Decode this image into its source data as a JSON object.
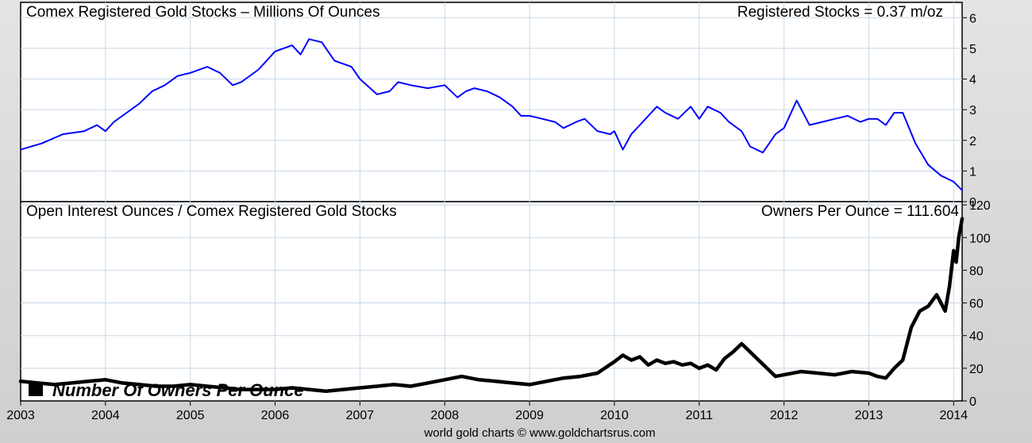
{
  "chart_data": [
    {
      "type": "line",
      "title": "Comex Registered Gold Stocks – Millions Of Ounces",
      "annotation": "Registered Stocks = 0.37 m/oz",
      "ylim": [
        0,
        6.5
      ],
      "yticks": [
        0,
        1,
        2,
        3,
        4,
        5,
        6
      ],
      "y_tick_labels": [
        "0",
        "1",
        "2",
        "3",
        "4",
        "5",
        "6"
      ],
      "grid": true,
      "series": [
        {
          "color": "#0000ff",
          "x": [
            2003.0,
            2003.25,
            2003.5,
            2003.75,
            2003.9,
            2004.0,
            2004.1,
            2004.25,
            2004.4,
            2004.55,
            2004.7,
            2004.85,
            2005.0,
            2005.2,
            2005.35,
            2005.5,
            2005.6,
            2005.8,
            2005.9,
            2006.0,
            2006.2,
            2006.3,
            2006.4,
            2006.55,
            2006.7,
            2006.9,
            2007.0,
            2007.2,
            2007.35,
            2007.45,
            2007.6,
            2007.8,
            2008.0,
            2008.15,
            2008.25,
            2008.35,
            2008.5,
            2008.65,
            2008.8,
            2008.9,
            2009.0,
            2009.15,
            2009.3,
            2009.4,
            2009.55,
            2009.65,
            2009.8,
            2009.95,
            2010.0,
            2010.1,
            2010.2,
            2010.3,
            2010.4,
            2010.5,
            2010.6,
            2010.75,
            2010.9,
            2011.0,
            2011.1,
            2011.25,
            2011.35,
            2011.5,
            2011.6,
            2011.75,
            2011.85,
            2011.9,
            2012.0,
            2012.15,
            2012.3,
            2012.45,
            2012.6,
            2012.75,
            2012.9,
            2013.0,
            2013.1,
            2013.2,
            2013.3,
            2013.4,
            2013.55,
            2013.7,
            2013.85,
            2014.0,
            2014.1
          ],
          "values": [
            1.7,
            1.9,
            2.2,
            2.3,
            2.5,
            2.3,
            2.6,
            2.9,
            3.2,
            3.6,
            3.8,
            4.1,
            4.2,
            4.4,
            4.2,
            3.8,
            3.9,
            4.3,
            4.6,
            4.9,
            5.1,
            4.8,
            5.3,
            5.2,
            4.6,
            4.4,
            4.0,
            3.5,
            3.6,
            3.9,
            3.8,
            3.7,
            3.8,
            3.4,
            3.6,
            3.7,
            3.6,
            3.4,
            3.1,
            2.8,
            2.8,
            2.7,
            2.6,
            2.4,
            2.6,
            2.7,
            2.3,
            2.2,
            2.3,
            1.7,
            2.2,
            2.5,
            2.8,
            3.1,
            2.9,
            2.7,
            3.1,
            2.7,
            3.1,
            2.9,
            2.6,
            2.3,
            1.8,
            1.6,
            2.0,
            2.2,
            2.4,
            3.3,
            2.5,
            2.6,
            2.7,
            2.8,
            2.6,
            2.7,
            2.7,
            2.5,
            2.9,
            2.9,
            1.9,
            1.2,
            0.85,
            0.65,
            0.37
          ]
        }
      ]
    },
    {
      "type": "line",
      "title": "Open Interest Ounces / Comex Registered Gold Stocks",
      "annotation": "Owners Per Ounce = 111.604",
      "legend": "Number Of Owners Per Ounce",
      "ylim": [
        0,
        122
      ],
      "yticks": [
        0,
        20,
        40,
        60,
        80,
        100,
        120
      ],
      "y_tick_labels": [
        "0",
        "20",
        "40",
        "60",
        "80",
        "100",
        "120"
      ],
      "grid": true,
      "series": [
        {
          "color": "#000000",
          "x": [
            2003.0,
            2003.2,
            2003.4,
            2003.6,
            2003.8,
            2004.0,
            2004.2,
            2004.4,
            2004.6,
            2004.8,
            2005.0,
            2005.2,
            2005.4,
            2005.6,
            2005.8,
            2006.0,
            2006.2,
            2006.4,
            2006.6,
            2006.8,
            2007.0,
            2007.2,
            2007.4,
            2007.6,
            2007.8,
            2008.0,
            2008.2,
            2008.4,
            2008.6,
            2008.8,
            2009.0,
            2009.2,
            2009.4,
            2009.6,
            2009.8,
            2010.0,
            2010.1,
            2010.2,
            2010.3,
            2010.4,
            2010.5,
            2010.6,
            2010.7,
            2010.8,
            2010.9,
            2011.0,
            2011.1,
            2011.2,
            2011.3,
            2011.4,
            2011.5,
            2011.6,
            2011.7,
            2011.8,
            2011.9,
            2012.0,
            2012.2,
            2012.4,
            2012.6,
            2012.8,
            2013.0,
            2013.1,
            2013.2,
            2013.3,
            2013.4,
            2013.5,
            2013.6,
            2013.7,
            2013.8,
            2013.85,
            2013.9,
            2013.95,
            2014.0,
            2014.03,
            2014.06,
            2014.1
          ],
          "values": [
            12,
            11,
            10,
            11,
            12,
            13,
            11,
            10,
            9,
            9,
            10,
            9,
            8,
            7,
            7,
            7,
            8,
            7,
            6,
            7,
            8,
            9,
            10,
            9,
            11,
            13,
            15,
            13,
            12,
            11,
            10,
            12,
            14,
            15,
            17,
            24,
            28,
            25,
            27,
            22,
            25,
            23,
            24,
            22,
            23,
            20,
            22,
            19,
            26,
            30,
            35,
            30,
            25,
            20,
            15,
            16,
            18,
            17,
            16,
            18,
            17,
            15,
            14,
            20,
            25,
            45,
            55,
            58,
            65,
            60,
            55,
            70,
            92,
            85,
            100,
            111.6
          ]
        }
      ]
    }
  ],
  "x_axis": {
    "xlim": [
      2003.0,
      2014.1
    ],
    "ticks": [
      2003,
      2004,
      2005,
      2006,
      2007,
      2008,
      2009,
      2010,
      2011,
      2012,
      2013,
      2014
    ],
    "labels": [
      "2003",
      "2004",
      "2005",
      "2006",
      "2007",
      "2008",
      "2009",
      "2010",
      "2011",
      "2012",
      "2013",
      "2014"
    ]
  },
  "credit": "world gold charts © www.goldchartsrus.com"
}
